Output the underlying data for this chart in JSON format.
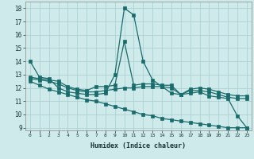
{
  "xlabel": "Humidex (Indice chaleur)",
  "xlim": [
    -0.5,
    23.5
  ],
  "ylim": [
    8.8,
    18.5
  ],
  "xticks": [
    0,
    1,
    2,
    3,
    4,
    5,
    6,
    7,
    8,
    9,
    10,
    11,
    12,
    13,
    14,
    15,
    16,
    17,
    18,
    19,
    20,
    21,
    22,
    23
  ],
  "yticks": [
    9,
    10,
    11,
    12,
    13,
    14,
    15,
    16,
    17,
    18
  ],
  "background_color": "#ceeaea",
  "grid_color": "#a8cccc",
  "line_color": "#1a6b6b",
  "line1_x": [
    0,
    1,
    2,
    3,
    4,
    5,
    6,
    7,
    8,
    9,
    10,
    11,
    12,
    13,
    14,
    15,
    16,
    17,
    18,
    19,
    20,
    21,
    22,
    23
  ],
  "line1_y": [
    14.0,
    12.8,
    12.7,
    12.0,
    11.7,
    11.6,
    11.5,
    11.5,
    11.6,
    13.0,
    18.0,
    17.5,
    14.0,
    12.6,
    12.1,
    11.6,
    11.5,
    11.6,
    11.7,
    11.4,
    11.3,
    11.2,
    9.9,
    9.0
  ],
  "line2_x": [
    0,
    1,
    2,
    3,
    4,
    5,
    6,
    7,
    8,
    9,
    10,
    11,
    12,
    13,
    14,
    15,
    16,
    17,
    18,
    19,
    20,
    21,
    22,
    23
  ],
  "line2_y": [
    12.8,
    12.7,
    12.6,
    12.5,
    12.1,
    11.9,
    11.8,
    12.1,
    12.1,
    12.2,
    15.5,
    12.2,
    12.3,
    12.3,
    12.2,
    12.2,
    11.5,
    11.9,
    12.0,
    11.9,
    11.7,
    11.5,
    11.4,
    11.4
  ],
  "line3_x": [
    0,
    1,
    2,
    3,
    4,
    5,
    6,
    7,
    8,
    9,
    10,
    11,
    12,
    13,
    14,
    15,
    16,
    17,
    18,
    19,
    20,
    21,
    22,
    23
  ],
  "line3_y": [
    12.7,
    12.6,
    12.5,
    12.3,
    12.0,
    11.8,
    11.7,
    11.7,
    11.8,
    11.9,
    12.0,
    12.0,
    12.1,
    12.1,
    12.1,
    12.0,
    11.5,
    11.8,
    11.8,
    11.7,
    11.5,
    11.3,
    11.2,
    11.2
  ],
  "line4_x": [
    0,
    1,
    2,
    3,
    4,
    5,
    6,
    7,
    8,
    9,
    10,
    11,
    12,
    13,
    14,
    15,
    16,
    17,
    18,
    19,
    20,
    21,
    22,
    23
  ],
  "line4_y": [
    12.5,
    12.2,
    11.9,
    11.7,
    11.5,
    11.3,
    11.1,
    11.0,
    10.8,
    10.6,
    10.4,
    10.2,
    10.0,
    9.9,
    9.7,
    9.6,
    9.5,
    9.4,
    9.3,
    9.2,
    9.1,
    9.0,
    9.0,
    9.0
  ]
}
